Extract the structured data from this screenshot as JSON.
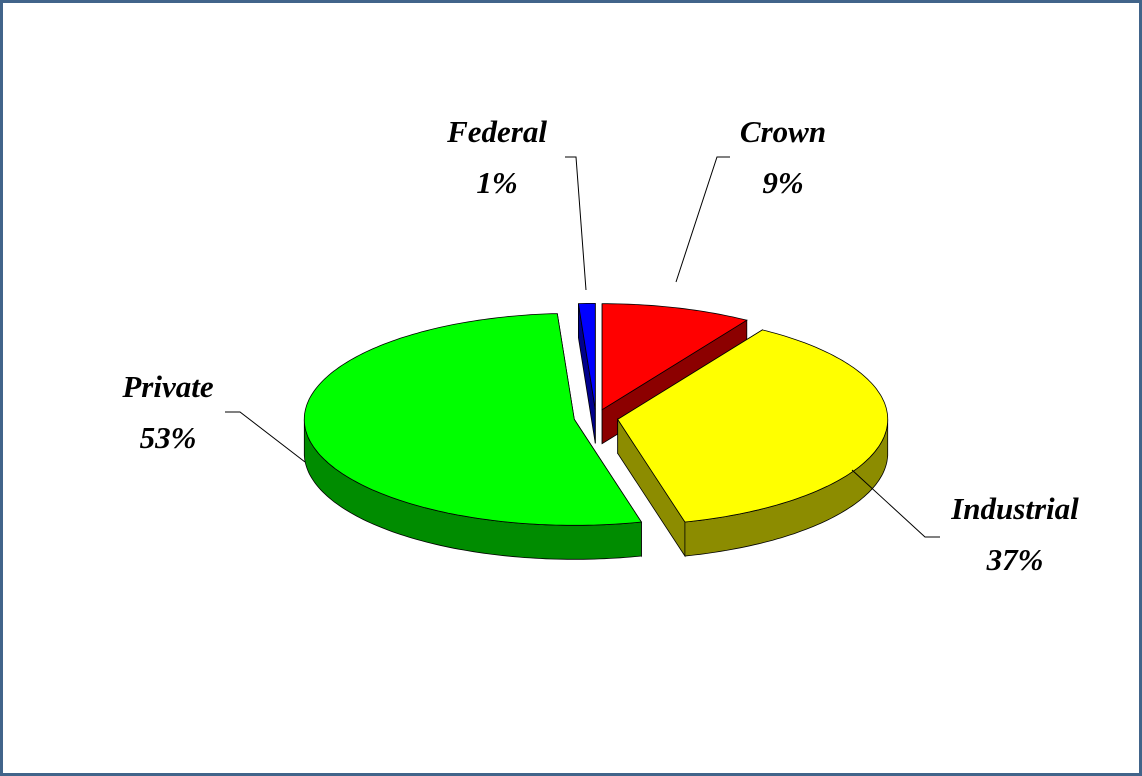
{
  "chart_data": {
    "type": "pie",
    "categories": [
      "Crown",
      "Industrial",
      "Private",
      "Federal"
    ],
    "values": [
      9,
      37,
      53,
      1
    ],
    "value_labels": [
      "9%",
      "37%",
      "53%",
      "1%"
    ],
    "colors": [
      "#ff0000",
      "#ffff00",
      "#00ff00",
      "#0000ff"
    ]
  }
}
